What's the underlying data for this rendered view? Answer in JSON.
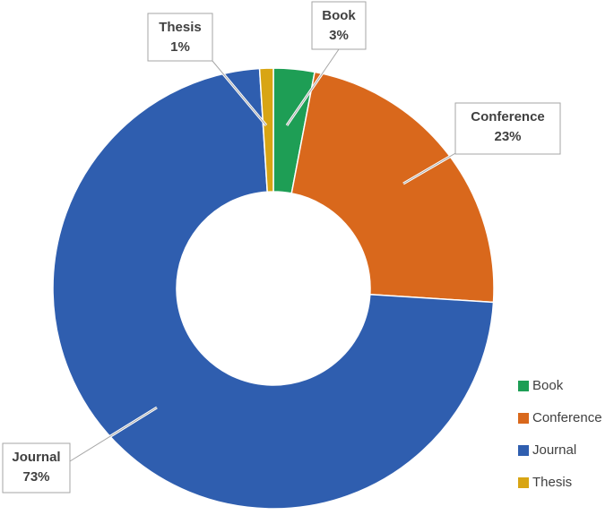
{
  "chart_data": {
    "type": "donut",
    "categories": [
      "Book",
      "Conference",
      "Journal",
      "Thesis"
    ],
    "values": [
      3,
      23,
      73,
      1
    ],
    "value_labels": [
      "3%",
      "23%",
      "73%",
      "1%"
    ],
    "colors": [
      "#1e9e55",
      "#d9681c",
      "#2f5eaf",
      "#d8a514"
    ],
    "legend": "right"
  }
}
